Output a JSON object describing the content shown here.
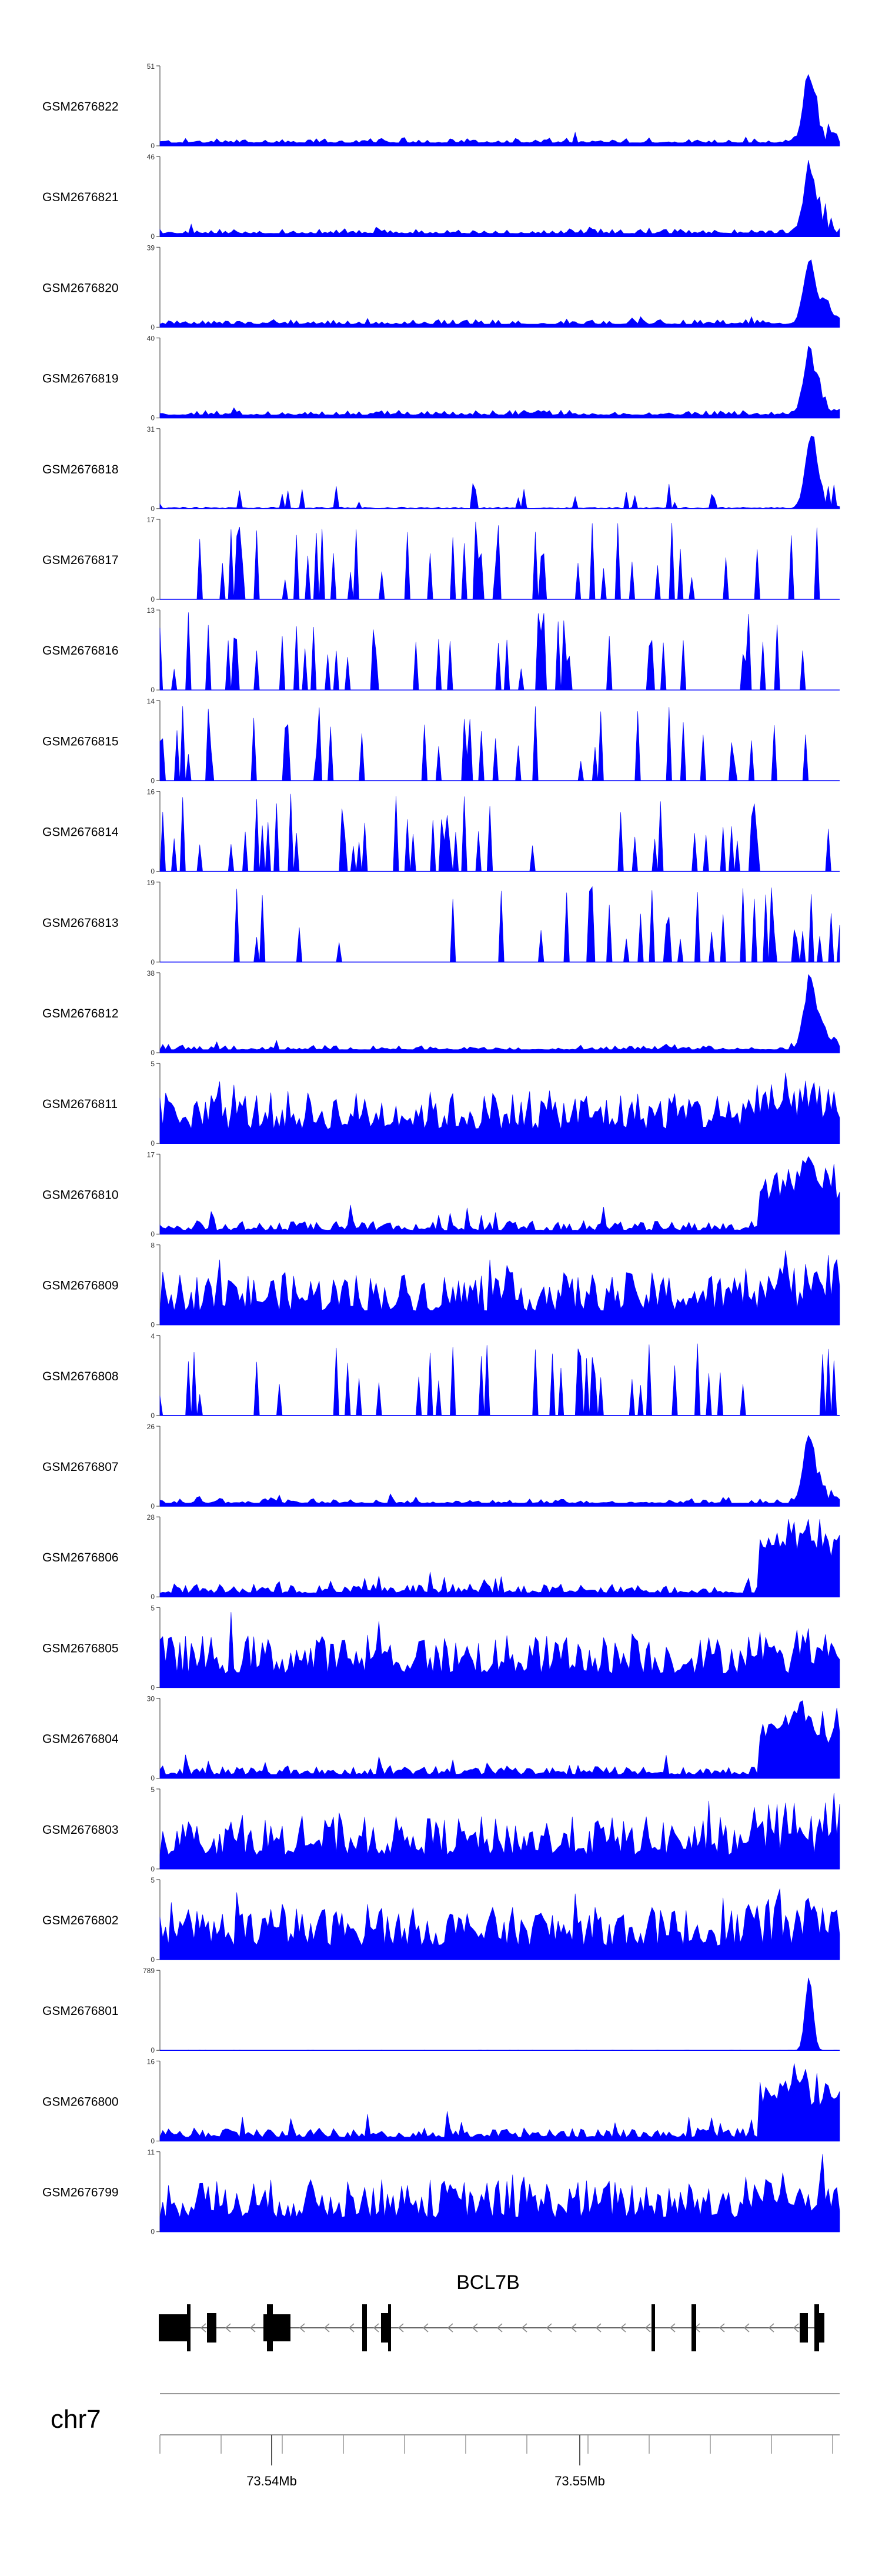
{
  "chart_data": {
    "type": "area",
    "chromosome": "chr7",
    "x_ticks": [
      "73.54Mb",
      "73.55Mb"
    ],
    "gene": {
      "name": "BCL7B",
      "strand": "-"
    },
    "series_color": "#0000ff",
    "tracks": [
      {
        "name": "GSM2676822",
        "ymin": "0",
        "ymax": "51",
        "shape": "peak"
      },
      {
        "name": "GSM2676821",
        "ymin": "0",
        "ymax": "46",
        "shape": "peak"
      },
      {
        "name": "GSM2676820",
        "ymin": "0",
        "ymax": "39",
        "shape": "peak"
      },
      {
        "name": "GSM2676819",
        "ymin": "0",
        "ymax": "40",
        "shape": "peak"
      },
      {
        "name": "GSM2676818",
        "ymin": "0",
        "ymax": "31",
        "shape": "peak_sparse"
      },
      {
        "name": "GSM2676817",
        "ymin": "0",
        "ymax": "17",
        "shape": "sparse"
      },
      {
        "name": "GSM2676816",
        "ymin": "0",
        "ymax": "13",
        "shape": "sparse"
      },
      {
        "name": "GSM2676815",
        "ymin": "0",
        "ymax": "14",
        "shape": "sparse"
      },
      {
        "name": "GSM2676814",
        "ymin": "0",
        "ymax": "16",
        "shape": "sparse"
      },
      {
        "name": "GSM2676813",
        "ymin": "0",
        "ymax": "19",
        "shape": "sparse"
      },
      {
        "name": "GSM2676812",
        "ymin": "0",
        "ymax": "38",
        "shape": "peak"
      },
      {
        "name": "GSM2676811",
        "ymin": "0",
        "ymax": "5",
        "shape": "dense"
      },
      {
        "name": "GSM2676810",
        "ymin": "0",
        "ymax": "17",
        "shape": "rise"
      },
      {
        "name": "GSM2676809",
        "ymin": "0",
        "ymax": "8",
        "shape": "dense"
      },
      {
        "name": "GSM2676808",
        "ymin": "0",
        "ymax": "4",
        "shape": "sparse"
      },
      {
        "name": "GSM2676807",
        "ymin": "0",
        "ymax": "26",
        "shape": "peak"
      },
      {
        "name": "GSM2676806",
        "ymin": "0",
        "ymax": "28",
        "shape": "rise"
      },
      {
        "name": "GSM2676805",
        "ymin": "0",
        "ymax": "5",
        "shape": "dense"
      },
      {
        "name": "GSM2676804",
        "ymin": "0",
        "ymax": "30",
        "shape": "rise"
      },
      {
        "name": "GSM2676803",
        "ymin": "0",
        "ymax": "5",
        "shape": "dense"
      },
      {
        "name": "GSM2676802",
        "ymin": "0",
        "ymax": "5",
        "shape": "dense"
      },
      {
        "name": "GSM2676801",
        "ymin": "0",
        "ymax": "789",
        "shape": "spike"
      },
      {
        "name": "GSM2676800",
        "ymin": "0",
        "ymax": "16",
        "shape": "rise"
      },
      {
        "name": "GSM2676799",
        "ymin": "0",
        "ymax": "11",
        "shape": "dense"
      }
    ]
  }
}
